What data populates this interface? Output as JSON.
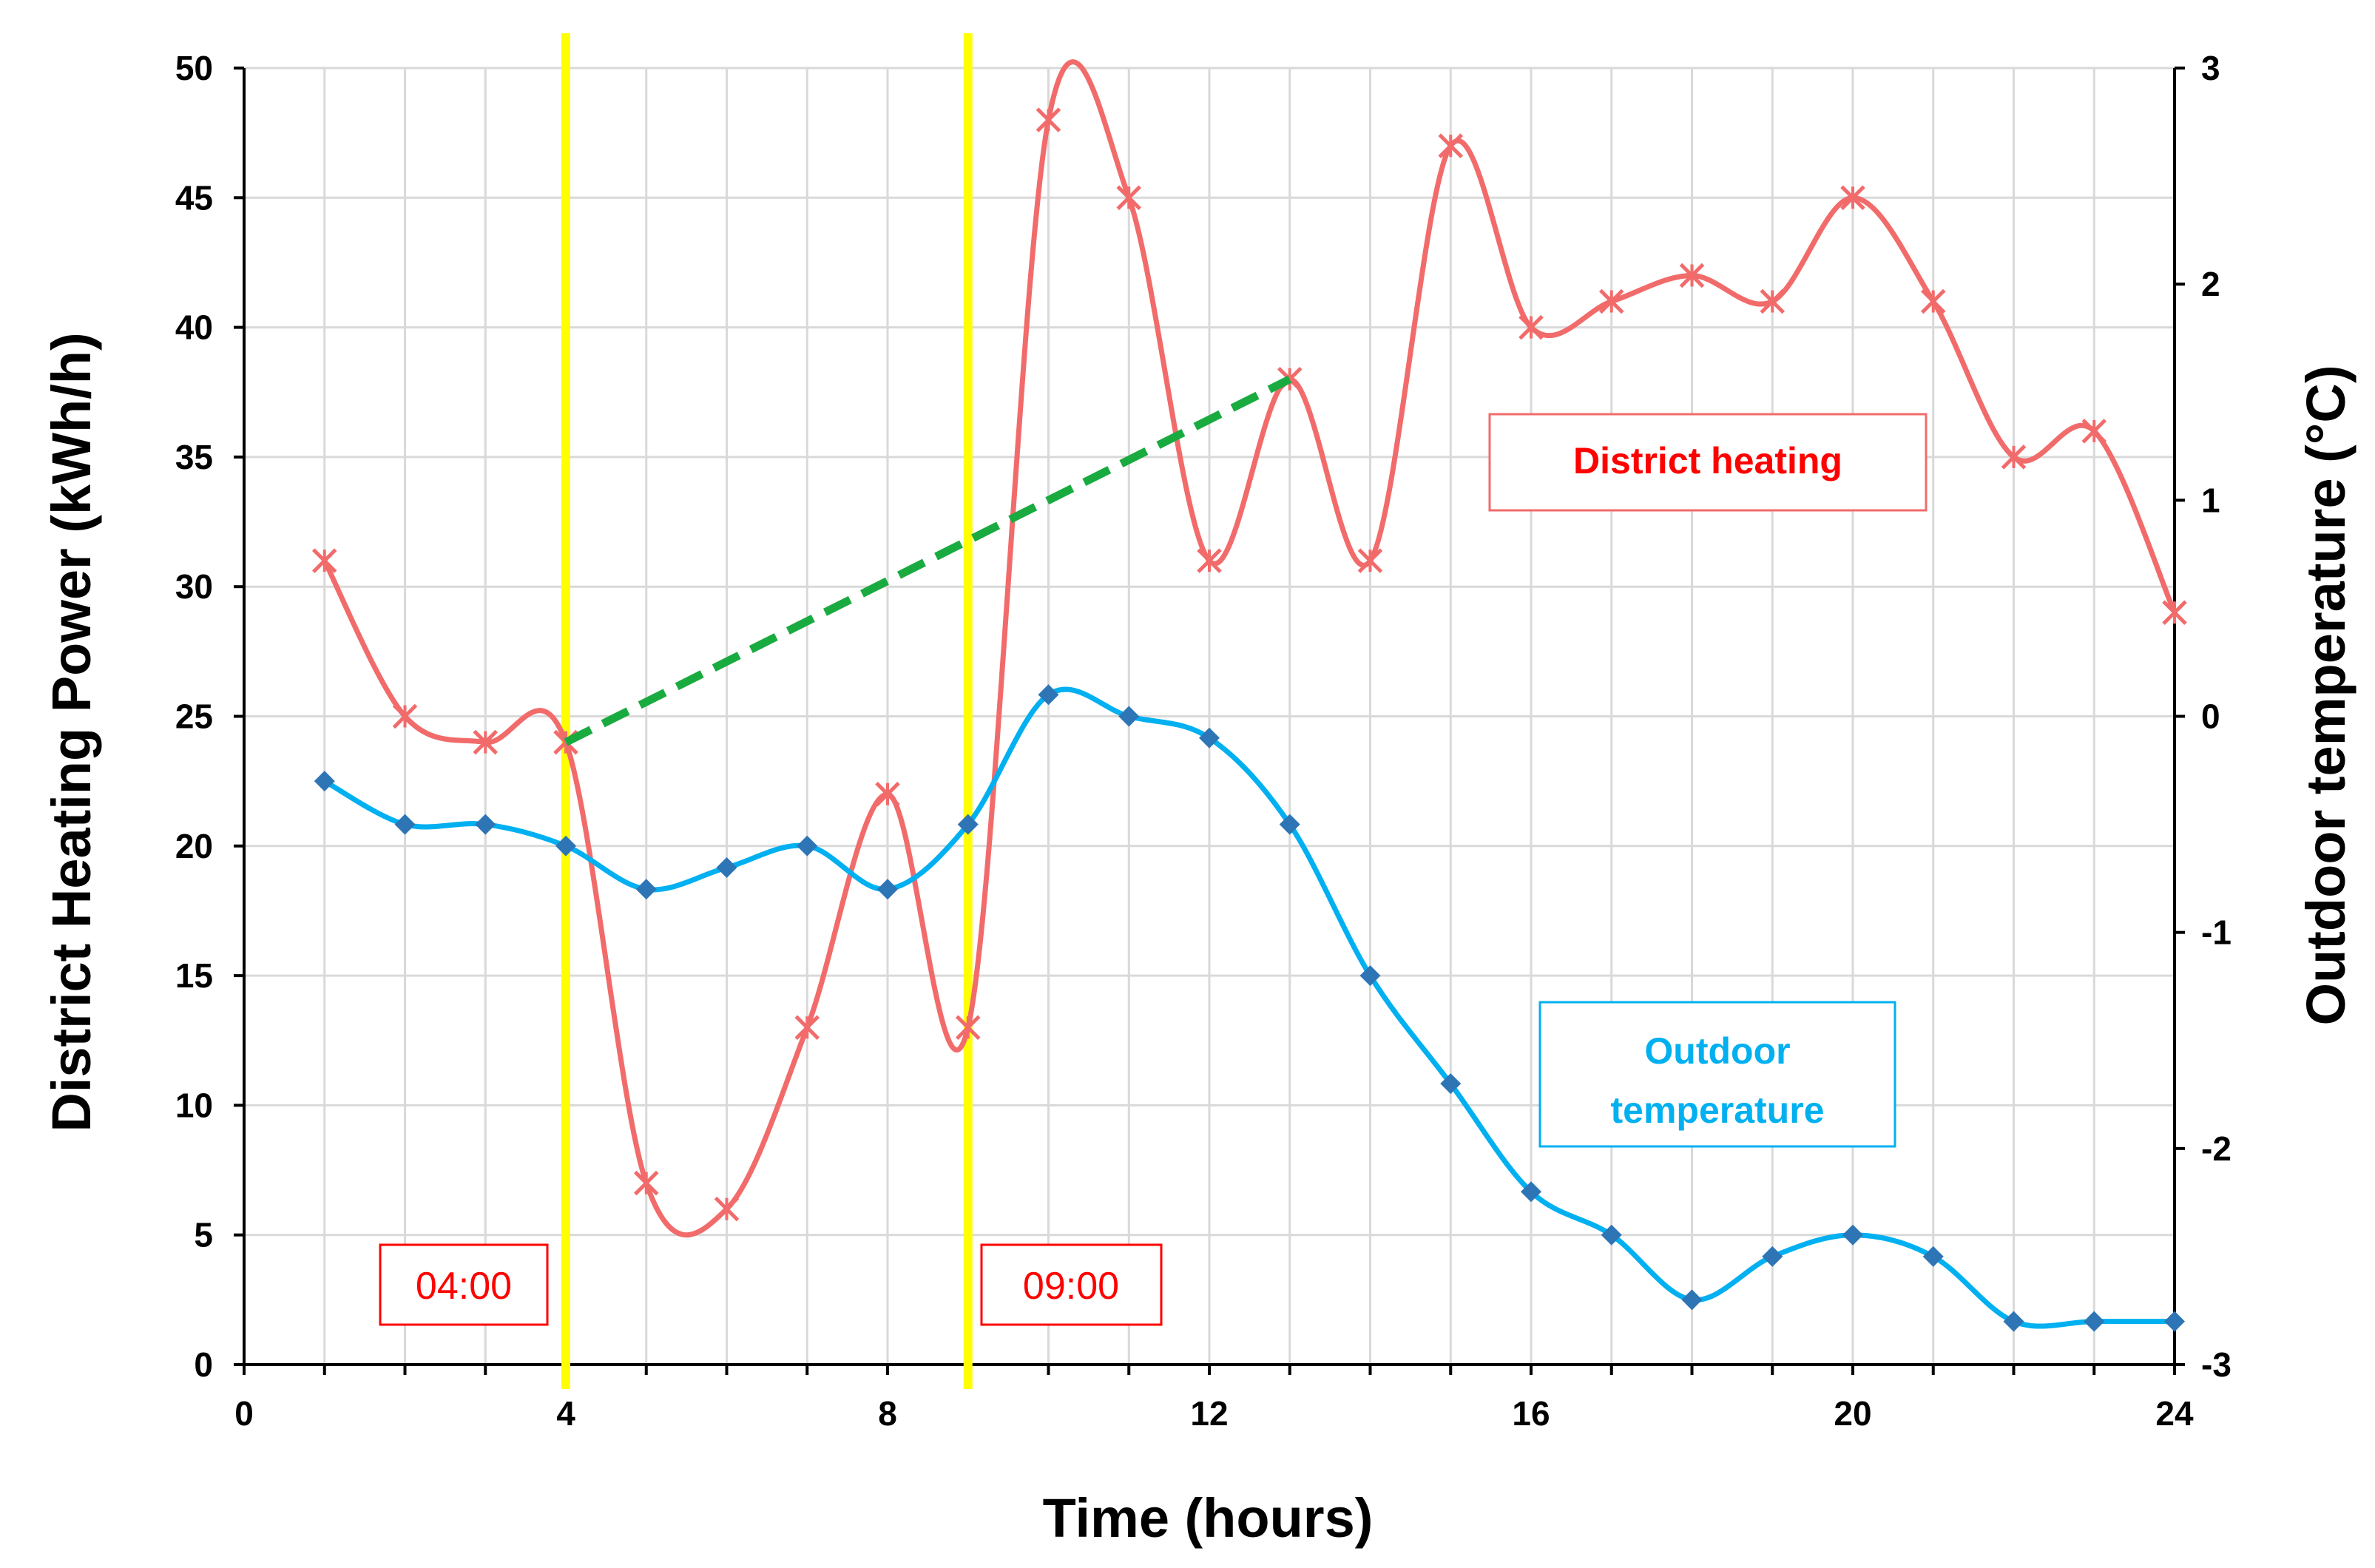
{
  "chart_data": {
    "type": "line",
    "title": "",
    "xlabel": "Time (hours)",
    "ylabel": "District Heating Power (kWh/h)",
    "y2label": "Outdoor temperature  (°C)",
    "xlim": [
      0,
      24
    ],
    "ylim": [
      0,
      50
    ],
    "y2lim": [
      -3,
      3
    ],
    "x_ticks": [
      0,
      4,
      8,
      12,
      16,
      20,
      24
    ],
    "y_ticks": [
      0,
      5,
      10,
      15,
      20,
      25,
      30,
      35,
      40,
      45,
      50
    ],
    "y2_ticks": [
      -3,
      -2,
      -1,
      0,
      1,
      2,
      3
    ],
    "grid": true,
    "series": [
      {
        "name": "District heating",
        "axis": "left",
        "color": "#f26b6b",
        "marker": "x",
        "x": [
          1,
          2,
          3,
          4,
          5,
          6,
          7,
          8,
          9,
          10,
          11,
          12,
          13,
          14,
          15,
          16,
          17,
          18,
          19,
          20,
          21,
          22,
          23,
          24
        ],
        "values": [
          31,
          25,
          24,
          24,
          7,
          6,
          13,
          22,
          13,
          48,
          45,
          31,
          38,
          31,
          47,
          40,
          41,
          42,
          41,
          45,
          41,
          35,
          36,
          29
        ]
      },
      {
        "name": "Outdoor temperature",
        "axis": "right",
        "color": "#00b0f0",
        "marker_color": "#2e75b6",
        "marker": "diamond",
        "x": [
          1,
          2,
          3,
          4,
          5,
          6,
          7,
          8,
          9,
          10,
          11,
          12,
          13,
          14,
          15,
          16,
          17,
          18,
          19,
          20,
          21,
          22,
          23,
          24
        ],
        "values": [
          -0.3,
          -0.5,
          -0.5,
          -0.6,
          -0.8,
          -0.7,
          -0.6,
          -0.8,
          -0.5,
          0.1,
          0.0,
          -0.1,
          -0.5,
          -1.2,
          -1.7,
          -2.2,
          -2.4,
          -2.7,
          -2.5,
          -2.4,
          -2.5,
          -2.8,
          -2.8,
          -2.8
        ]
      }
    ],
    "annotations": {
      "vertical_lines": [
        {
          "x": 4,
          "label": "04:00",
          "color": "#ffff00"
        },
        {
          "x": 9,
          "label": "09:00",
          "color": "#ffff00"
        }
      ],
      "trend_line": {
        "from": [
          4,
          24
        ],
        "to": [
          13,
          38
        ],
        "color": "#1aab40",
        "style": "dashed"
      },
      "legend_boxes": [
        {
          "text": "District heating",
          "color": "#ff0000"
        },
        {
          "text_lines": [
            "Outdoor",
            "temperature"
          ],
          "color": "#00b0f0"
        }
      ]
    }
  }
}
